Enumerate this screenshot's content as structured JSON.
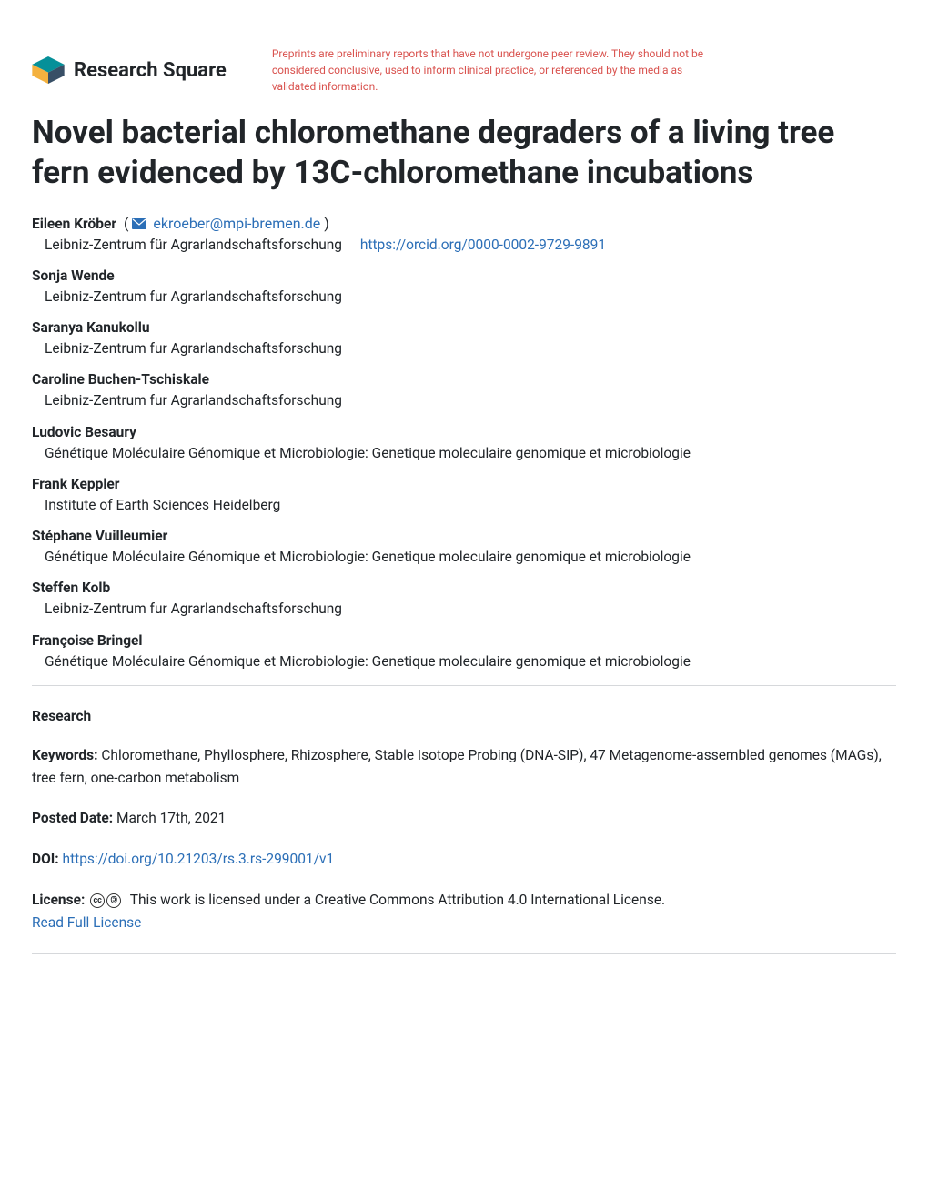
{
  "brand": {
    "name": "Research Square",
    "logo_colors": {
      "top": "#069099",
      "left": "#f4b13e",
      "right": "#384f66"
    }
  },
  "disclaimer": "Preprints are preliminary reports that have not undergone peer review. They should not be considered conclusive, used to inform clinical practice, or referenced by the media as validated information.",
  "title": "Novel bacterial chloromethane degraders of a living tree fern evidenced by 13C-chloromethane incubations",
  "corresponding_author": {
    "name": "Eileen Kröber",
    "email": "ekroeber@mpi-bremen.de",
    "affiliation": "Leibniz-Zentrum für Agrarlandschaftsforschung",
    "orcid": "https://orcid.org/0000-0002-9729-9891"
  },
  "authors": [
    {
      "name": "Sonja Wende",
      "affiliation": "Leibniz-Zentrum fur Agrarlandschaftsforschung"
    },
    {
      "name": "Saranya Kanukollu",
      "affiliation": "Leibniz-Zentrum fur Agrarlandschaftsforschung"
    },
    {
      "name": "Caroline Buchen-Tschiskale",
      "affiliation": "Leibniz-Zentrum fur Agrarlandschaftsforschung"
    },
    {
      "name": "Ludovic Besaury",
      "affiliation": "Génétique Moléculaire Génomique et Microbiologie: Genetique moleculaire genomique et microbiologie"
    },
    {
      "name": "Frank Keppler",
      "affiliation": "Institute of Earth Sciences Heidelberg"
    },
    {
      "name": "Stéphane Vuilleumier",
      "affiliation": "Génétique Moléculaire Génomique et Microbiologie: Genetique moleculaire genomique et microbiologie"
    },
    {
      "name": "Steffen Kolb",
      "affiliation": "Leibniz-Zentrum fur Agrarlandschaftsforschung"
    },
    {
      "name": "Françoise Bringel",
      "affiliation": "Génétique Moléculaire Génomique et Microbiologie: Genetique moleculaire genomique et microbiologie"
    }
  ],
  "section_type": "Research",
  "keywords_label": "Keywords:",
  "keywords": "Chloromethane, Phyllosphere, Rhizosphere, Stable Isotope Probing (DNA-SIP), 47 Metagenome-assembled genomes (MAGs), tree fern, one-carbon metabolism",
  "posted_label": "Posted Date:",
  "posted_date": "March 17th, 2021",
  "doi_label": "DOI:",
  "doi": "https://doi.org/10.21203/rs.3.rs-299001/v1",
  "license_label": "License:",
  "license_text": "This work is licensed under a Creative Commons Attribution 4.0 International License.",
  "license_link_text": "Read Full License",
  "colors": {
    "link": "#2c6fb7",
    "disclaimer": "#d9534f",
    "text": "#212529"
  }
}
